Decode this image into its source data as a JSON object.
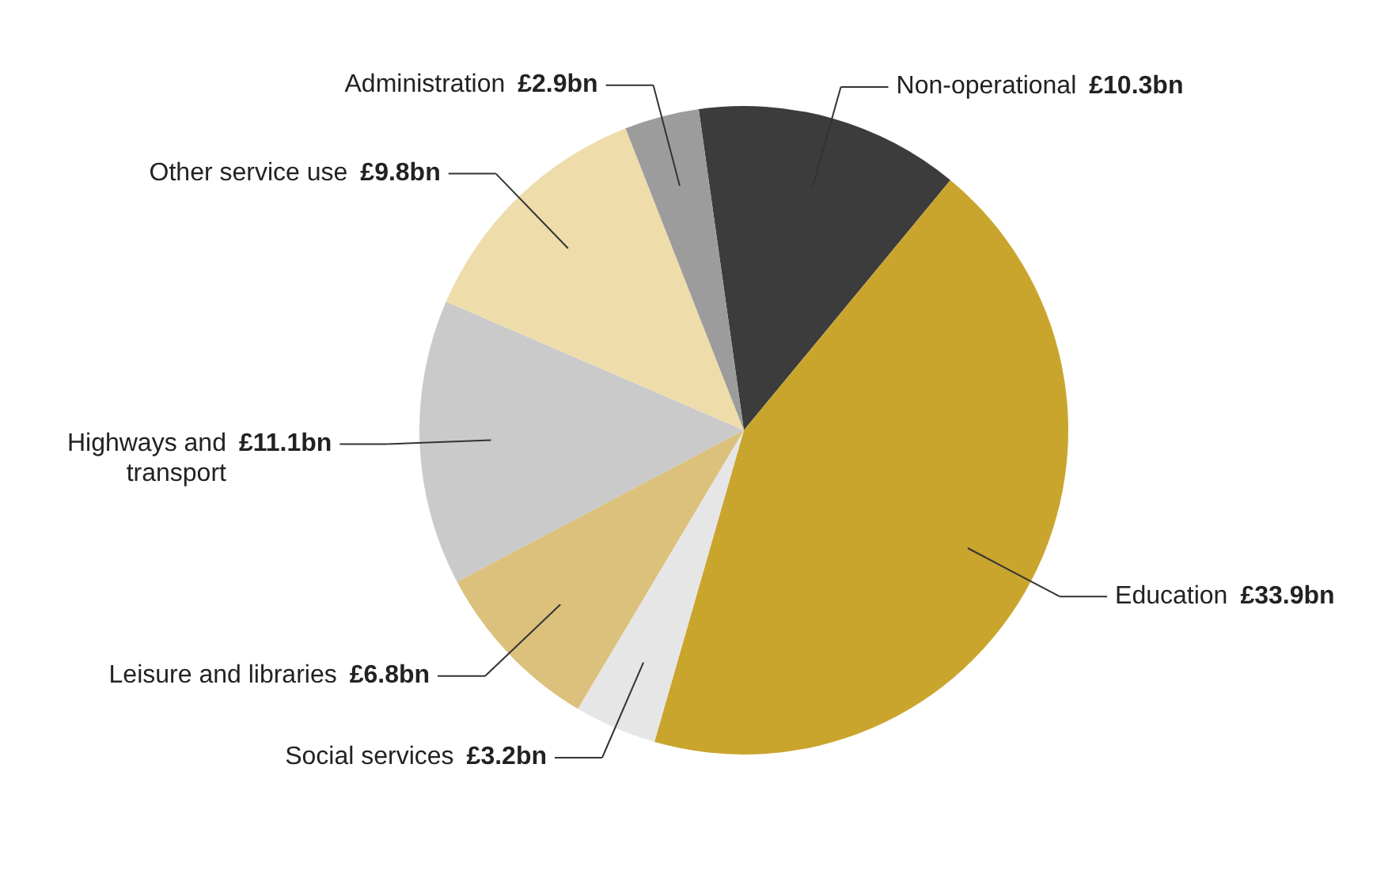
{
  "chart_data": {
    "type": "pie",
    "categories": [
      "Non-operational",
      "Education",
      "Social services",
      "Leisure and libraries",
      "Highways and transport",
      "Other service use",
      "Administration"
    ],
    "values": [
      10.3,
      33.9,
      3.2,
      6.8,
      11.1,
      9.8,
      2.9
    ],
    "value_labels": [
      "£10.3bn",
      "£33.9bn",
      "£3.2bn",
      "£6.8bn",
      "£11.1bn",
      "£9.8bn",
      "£2.9bn"
    ],
    "colors": [
      "#3c3c3c",
      "#c9a52e",
      "#e6e6e6",
      "#dcc17c",
      "#cacaca",
      "#eedcab",
      "#9c9c9c"
    ]
  }
}
